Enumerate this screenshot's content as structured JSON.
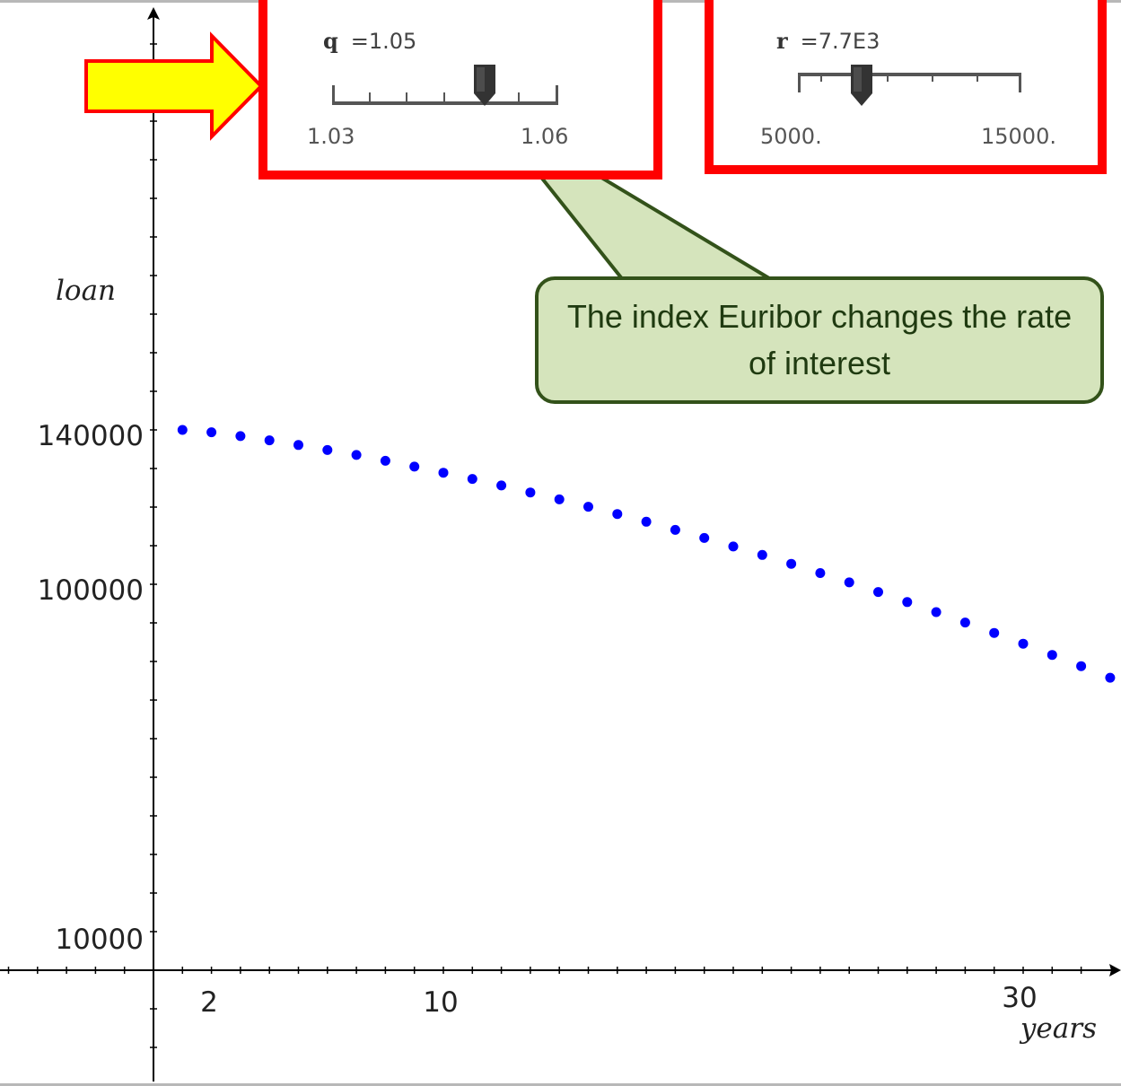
{
  "slider_q": {
    "name": "q",
    "value_text": "=1.05",
    "min_label": "1.03",
    "max_label": "1.06",
    "min": 1.03,
    "max": 1.06,
    "value": 1.05
  },
  "slider_r": {
    "name": "r",
    "value_text": "=7.7E3",
    "min_label": "5000.",
    "max_label": "15000.",
    "min": 5000,
    "max": 15000,
    "value": 7700
  },
  "callout": {
    "text": "The index Euribor changes the rate of interest"
  },
  "colors": {
    "highlight_border": "#ff0000",
    "arrow_fill": "#ffff00",
    "callout_fill": "#d5e4bc",
    "callout_border": "#33521a",
    "points": "#0000ff"
  },
  "chart_data": {
    "type": "scatter",
    "title": "",
    "xlabel": "years",
    "ylabel": "loan",
    "x_tick_labels": [
      "2",
      "10",
      "30"
    ],
    "y_tick_labels": [
      "10000",
      "100000",
      "140000"
    ],
    "series": [
      {
        "x": [
          1,
          2,
          3,
          4,
          5,
          6,
          7,
          8,
          9,
          10,
          11,
          12,
          13,
          14,
          15,
          16,
          17,
          18,
          19,
          20,
          21,
          22,
          23,
          24,
          25,
          26,
          27,
          28,
          29,
          30,
          31,
          32,
          33
        ],
        "y": [
          140000,
          139400,
          138400,
          137300,
          136100,
          134800,
          133500,
          132000,
          130500,
          128900,
          127300,
          125600,
          123800,
          122000,
          120100,
          118200,
          116200,
          114100,
          112000,
          109800,
          107600,
          105300,
          102900,
          100500,
          98000,
          95400,
          92800,
          90100,
          87400,
          84600,
          81700,
          78800,
          75800
        ]
      }
    ],
    "grid": false
  }
}
